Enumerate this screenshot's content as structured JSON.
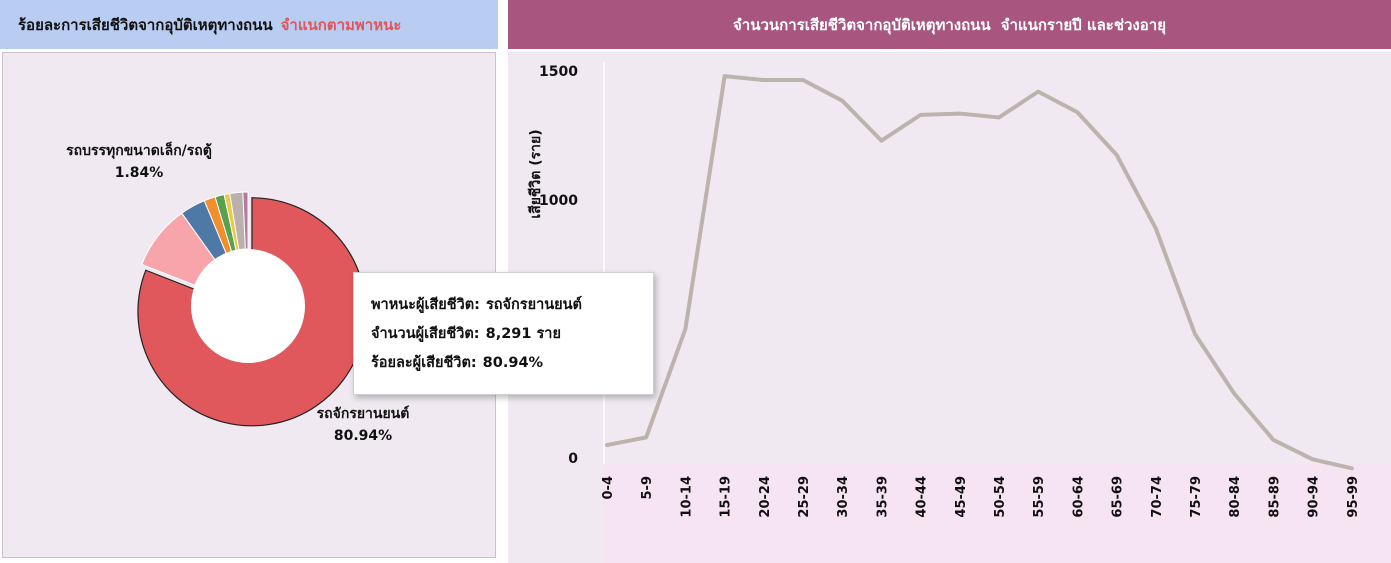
{
  "left_panel": {
    "title": "ร้อยละการเสียชีวิตจากอุบัติเหตุทางถนน",
    "title_accent": "จำแนกตามพาหนะ"
  },
  "right_panel": {
    "title": "จำนวนการเสียชีวิตจากอุบัติเหตุทางถนน",
    "title_accent": "จำแนกรายปี และช่วงอายุ"
  },
  "pie_labels": {
    "truck_name": "รถบรรทุกขนาดเล็ก/รถตู้",
    "truck_pct": "1.84%",
    "car_name": "รถจักรยานยนต์",
    "car_pct": "80.94%"
  },
  "tooltip": {
    "vehicle_key": "พาหนะผู้เสียชีวิต:",
    "vehicle_value": "รถจักรยานยนต์",
    "count_key": "จำนวนผู้เสียชีวิต:",
    "count_value": "8,291 ราย",
    "pct_key": "ร้อยละผู้เสียชีวิต:",
    "pct_value": "80.94%"
  },
  "colors": {
    "motorcycle": "#e0585c",
    "pink": "#f8a4ab",
    "blue": "#4e79a7",
    "orange": "#f28e2b",
    "green": "#59a14f",
    "yellow": "#edc948",
    "purple": "#b07aa1",
    "gray": "#bab0ac",
    "line": "#bdb3ad"
  },
  "chart_data": [
    {
      "type": "pie",
      "categories": [
        "รถจักรยานยนต์",
        "",
        "",
        "",
        "",
        "",
        "รถบรรทุกขนาดเล็ก/รถตู้",
        ""
      ],
      "values": [
        80.94,
        9.2,
        3.6,
        1.6,
        1.3,
        0.8,
        1.84,
        0.72
      ],
      "colors": [
        "#e0585c",
        "#f8a4ab",
        "#4e79a7",
        "#f28e2b",
        "#59a14f",
        "#edc948",
        "#bab0ac",
        "#b07aa1"
      ],
      "highlighted_index": 0
    },
    {
      "type": "line",
      "x": [
        "0-4",
        "5-9",
        "10-14",
        "15-19",
        "20-24",
        "25-29",
        "30-34",
        "35-39",
        "40-44",
        "45-49",
        "50-54",
        "55-59",
        "60-64",
        "65-69",
        "70-74",
        "75-79",
        "80-84",
        "85-89",
        "90-94",
        "95-99"
      ],
      "series": [
        {
          "values": [
            50,
            80,
            500,
            1480,
            1465,
            1465,
            1385,
            1230,
            1330,
            1335,
            1320,
            1420,
            1340,
            1175,
            890,
            480,
            250,
            70,
            -5,
            -40
          ]
        }
      ],
      "ylabel": "เสียชีวิต (ราย)",
      "yticks": [
        0,
        1000,
        1500
      ],
      "ylim": [
        0,
        1500
      ],
      "grid": false
    }
  ]
}
